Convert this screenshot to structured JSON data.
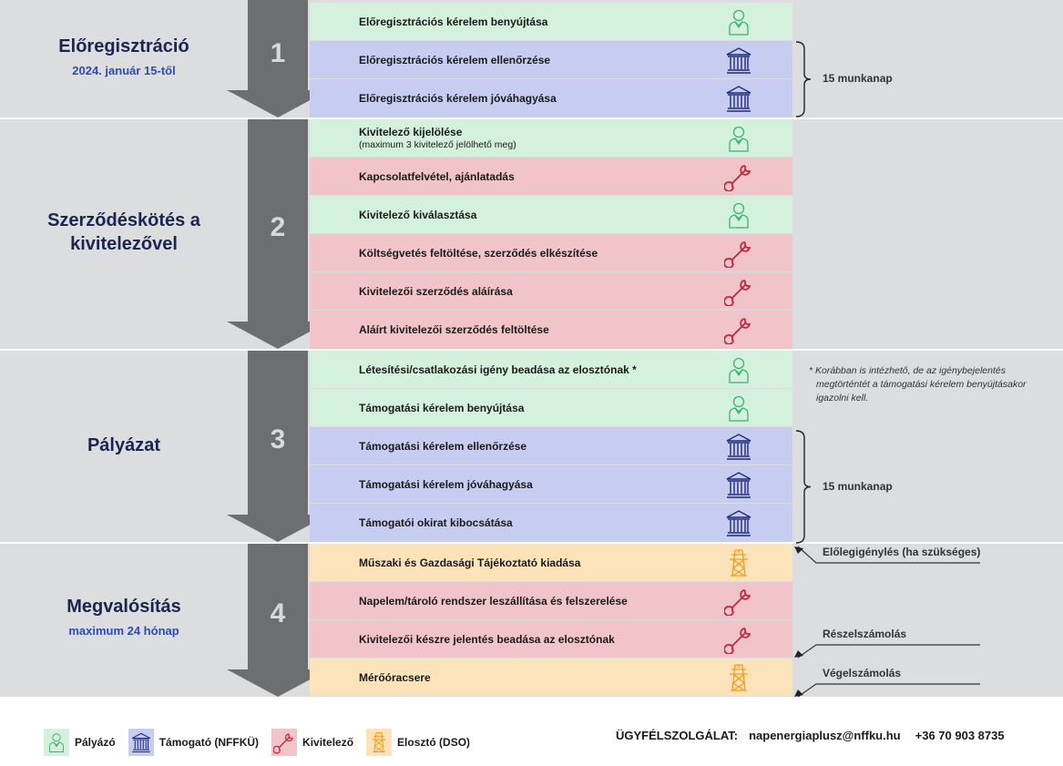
{
  "colors": {
    "palyazo_bg": "#d3f1dc",
    "tamogato_bg": "#c6cdf1",
    "kivitelezo_bg": "#f1c4ca",
    "eloszto_bg": "#fde3b9",
    "palyazo": "#3cb46e",
    "tamogato": "#1f2a7a",
    "kivitelezo": "#c8243c",
    "eloszto": "#f29c1e",
    "arrow": "#6d6e70"
  },
  "sections": [
    {
      "number": "1",
      "title": "Előregisztráció",
      "subtitle": "2024. január 15-től",
      "rows": [
        {
          "label": "Előregisztrációs kérelem benyújtása",
          "actor": "palyazo",
          "icon": "person-icon"
        },
        {
          "label": "Előregisztrációs kérelem ellenőrzése",
          "actor": "tamogato",
          "icon": "institution-icon"
        },
        {
          "label": "Előregisztrációs kérelem jóváhagyása",
          "actor": "tamogato",
          "icon": "institution-icon"
        }
      ]
    },
    {
      "number": "2",
      "title": "Szerződéskötés a kivitelezővel",
      "subtitle": "",
      "rows": [
        {
          "label": "Kivitelező kijelölése",
          "sub": "(maximum 3 kivitelező jelölhető meg)",
          "actor": "palyazo",
          "icon": "person-icon"
        },
        {
          "label": "Kapcsolatfelvétel, ajánlatadás",
          "actor": "kivitelezo",
          "icon": "wrench-icon"
        },
        {
          "label": "Kivitelező kiválasztása",
          "actor": "palyazo",
          "icon": "person-icon"
        },
        {
          "label": "Költségvetés feltöltése, szerződés elkészítése",
          "actor": "kivitelezo",
          "icon": "wrench-icon"
        },
        {
          "label": "Kivitelezői szerződés aláírása",
          "actor": "kivitelezo",
          "icon": "wrench-icon"
        },
        {
          "label": "Aláírt kivitelezői szerződés feltöltése",
          "actor": "kivitelezo",
          "icon": "wrench-icon"
        }
      ]
    },
    {
      "number": "3",
      "title": "Pályázat",
      "subtitle": "",
      "rows": [
        {
          "label": "Létesítési/csatlakozási igény beadása az elosztónak *",
          "actor": "palyazo",
          "icon": "person-icon"
        },
        {
          "label": "Támogatási kérelem benyújtása",
          "actor": "palyazo",
          "icon": "person-icon"
        },
        {
          "label": "Támogatási kérelem ellenőrzése",
          "actor": "tamogato",
          "icon": "institution-icon"
        },
        {
          "label": "Támogatási kérelem jóváhagyása",
          "actor": "tamogato",
          "icon": "institution-icon"
        },
        {
          "label": "Támogatói okirat kibocsátása",
          "actor": "tamogato",
          "icon": "institution-icon"
        }
      ]
    },
    {
      "number": "4",
      "title": "Megvalósítás",
      "subtitle": "maximum 24 hónap",
      "rows": [
        {
          "label": "Műszaki és Gazdasági Tájékoztató kiadása",
          "actor": "eloszto",
          "icon": "power-tower-icon"
        },
        {
          "label": "Napelem/tároló rendszer leszállítása és felszerelése",
          "actor": "kivitelezo",
          "icon": "wrench-icon"
        },
        {
          "label": "Kivitelezői készre jelentés beadása az elosztónak",
          "actor": "kivitelezo",
          "icon": "wrench-icon"
        },
        {
          "label": "Mérőóracsere",
          "actor": "eloszto",
          "icon": "power-tower-icon"
        }
      ]
    }
  ],
  "annotations": {
    "bracket1": "15 munkanap",
    "bracket2": "15 munkanap",
    "footnote": "* Korábban is intézhető, de az igénybejelentés megtörténtét a támogatási kérelem benyújtásakor igazolni kell.",
    "advance": "Előlegigénylés (ha szükséges)",
    "partial": "Részelszámolás",
    "final": "Végelszámolás"
  },
  "legend": [
    {
      "label": "Pályázó",
      "actor": "palyazo",
      "icon": "person-icon"
    },
    {
      "label": "Támogató (NFFKÜ)",
      "actor": "tamogato",
      "icon": "institution-icon"
    },
    {
      "label": "Kivitelező",
      "actor": "kivitelezo",
      "icon": "wrench-icon"
    },
    {
      "label": "Elosztó (DSO)",
      "actor": "eloszto",
      "icon": "power-tower-icon"
    }
  ],
  "contact": {
    "label": "ÜGYFÉLSZOLGÁLAT:",
    "email": "napenergiaplusz@nffku.hu",
    "phone": "+36 70 903 8735"
  }
}
